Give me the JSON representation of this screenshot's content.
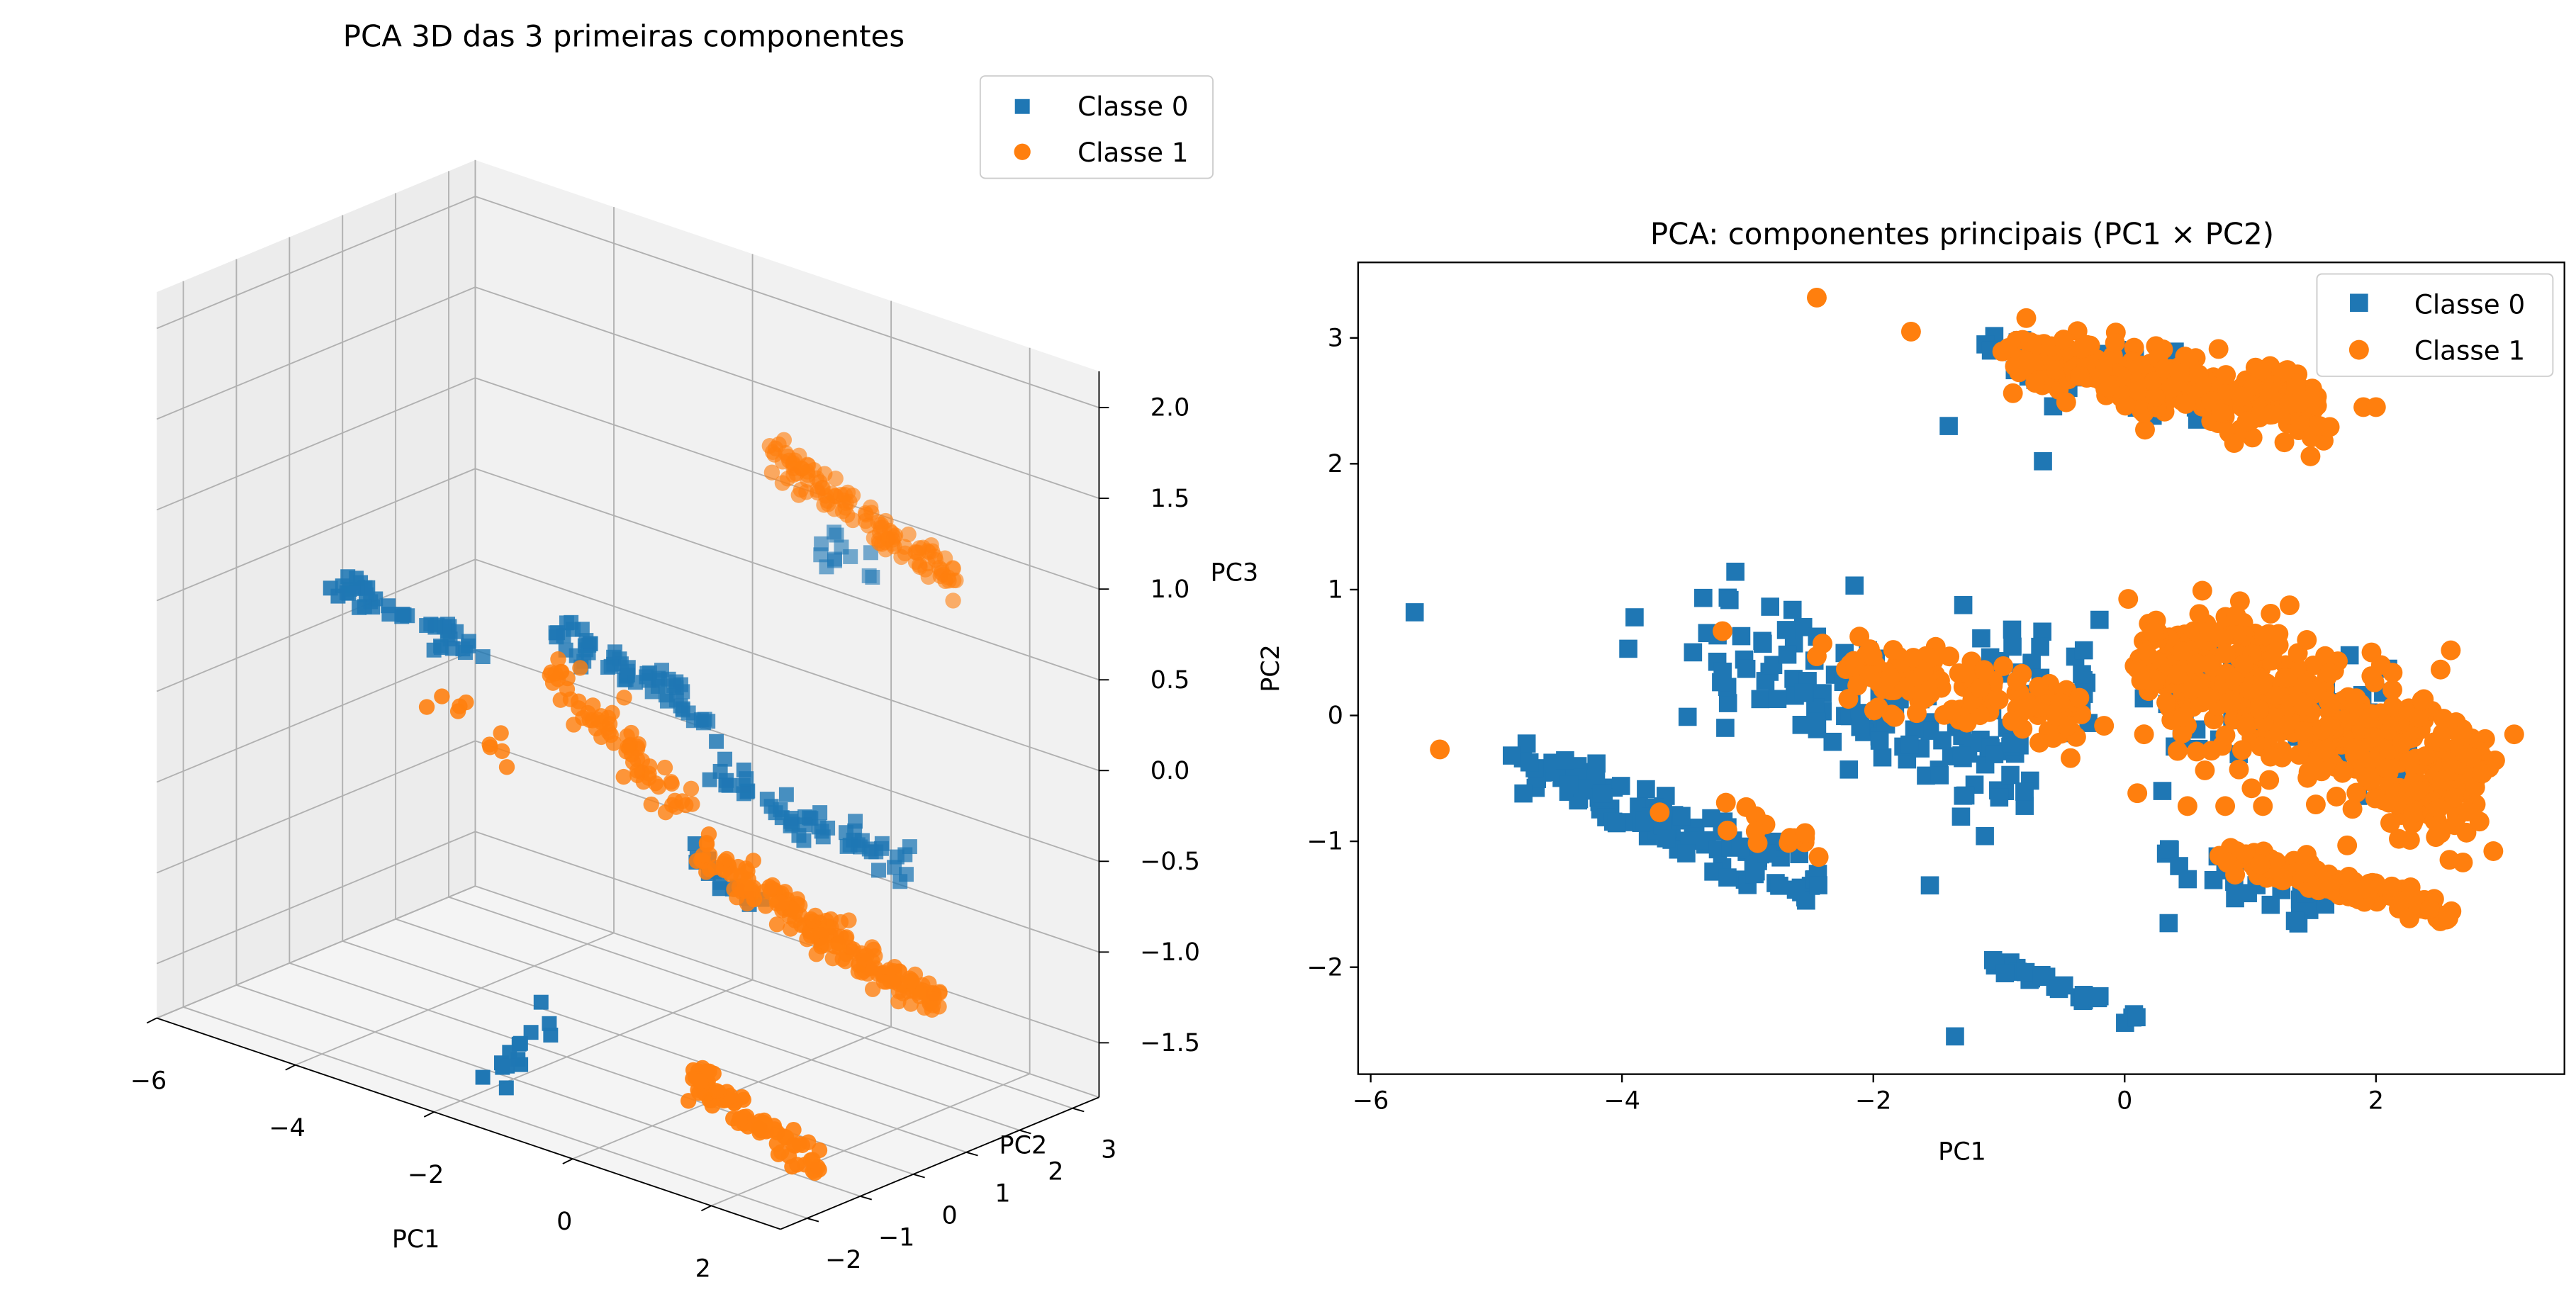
{
  "chart_data": [
    {
      "type": "scatter",
      "subtype": "3d",
      "title": "PCA 3D das 3 primeiras componentes",
      "xlabel": "PC1",
      "ylabel": "PC2",
      "zlabel": "PC3",
      "xlim": [
        -6,
        3
      ],
      "ylim": [
        -2.5,
        3.5
      ],
      "zlim": [
        -1.8,
        2.2
      ],
      "xticks": [
        "−6",
        "−4",
        "−2",
        "0",
        "2"
      ],
      "yticks": [
        "−2",
        "−1",
        "0",
        "1",
        "2",
        "3"
      ],
      "zticks": [
        "−1.5",
        "−1.0",
        "−0.5",
        "0.0",
        "0.5",
        "1.0",
        "1.5",
        "2.0"
      ],
      "grid": true,
      "legend": "top-right",
      "series": [
        {
          "name": "Classe 0",
          "color": "#1f77b4",
          "marker": "square",
          "clusters": [
            {
              "x": [
                -4.8,
                -3.2
              ],
              "y": [
                -1.0,
                -0.1
              ],
              "z": [
                0.6,
                0.3
              ],
              "n": 45
            },
            {
              "x": [
                -2.0,
                -0.6
              ],
              "y": [
                -0.2,
                0.7
              ],
              "z": [
                0.6,
                0.2
              ],
              "n": 60
            },
            {
              "x": [
                0.4,
                2.4
              ],
              "y": [
                -0.4,
                0.8
              ],
              "z": [
                0.1,
                -0.3
              ],
              "n": 55
            },
            {
              "x": [
                -0.3,
                0.3
              ],
              "y": [
                2.5,
                2.9
              ],
              "z": [
                1.0,
                0.8
              ],
              "n": 12
            },
            {
              "x": [
                -1.4,
                -0.6
              ],
              "y": [
                -2.5,
                -2.1
              ],
              "z": [
                -1.6,
                -1.2
              ],
              "n": 14
            },
            {
              "x": [
                1.0,
                1.6
              ],
              "y": [
                -1.5,
                -1.1
              ],
              "z": [
                -0.1,
                -0.4
              ],
              "n": 14
            }
          ]
        },
        {
          "name": "Classe 1",
          "color": "#ff7f0e",
          "marker": "circle",
          "clusters": [
            {
              "x": [
                -3.2,
                -2.4
              ],
              "y": [
                -1.0,
                -0.6
              ],
              "z": [
                0.2,
                -0.1
              ],
              "n": 10
            },
            {
              "x": [
                -2.2,
                -0.6
              ],
              "y": [
                0.0,
                0.4
              ],
              "z": [
                0.3,
                -0.3
              ],
              "n": 70
            },
            {
              "x": [
                0.4,
                2.8
              ],
              "y": [
                -0.6,
                0.8
              ],
              "z": [
                -0.3,
                -1.0
              ],
              "n": 180
            },
            {
              "x": [
                -0.9,
                1.4
              ],
              "y": [
                2.4,
                2.9
              ],
              "z": [
                1.4,
                0.9
              ],
              "n": 120
            },
            {
              "x": [
                1.0,
                2.5
              ],
              "y": [
                -1.6,
                -1.1
              ],
              "z": [
                -1.3,
                -1.7
              ],
              "n": 90
            }
          ]
        }
      ]
    },
    {
      "type": "scatter",
      "title": "PCA: componentes principais (PC1 × PC2)",
      "xlabel": "PC1",
      "ylabel": "PC2",
      "xlim": [
        -6.1,
        3.5
      ],
      "ylim": [
        -2.85,
        3.6
      ],
      "xticks": [
        "−6",
        "−4",
        "−2",
        "0",
        "2"
      ],
      "yticks": [
        "−2",
        "−1",
        "0",
        "1",
        "2",
        "3"
      ],
      "legend": "top-right",
      "series": [
        {
          "name": "Classe 0",
          "color": "#1f77b4",
          "marker": "square",
          "clusters": [
            {
              "x": [
                -4.9,
                -2.4
              ],
              "y": [
                -0.3,
                -1.4
              ],
              "spread": 0.12,
              "n": 110
            },
            {
              "x": [
                -3.3,
                -0.8
              ],
              "y": [
                0.6,
                -0.5
              ],
              "spread": 0.25,
              "n": 120
            },
            {
              "x": [
                -1.1,
                -0.2
              ],
              "y": [
                0.7,
                0.1
              ],
              "spread": 0.18,
              "n": 25
            },
            {
              "x": [
                0.2,
                2.2
              ],
              "y": [
                0.3,
                -0.3
              ],
              "spread": 0.2,
              "n": 90
            },
            {
              "x": [
                -1.1,
                0.9
              ],
              "y": [
                2.9,
                2.5
              ],
              "spread": 0.12,
              "n": 60
            },
            {
              "x": [
                -1.0,
                0.1
              ],
              "y": [
                -2.0,
                -2.4
              ],
              "spread": 0.05,
              "n": 25
            },
            {
              "x": [
                0.3,
                1.5
              ],
              "y": [
                -1.1,
                -1.5
              ],
              "spread": 0.1,
              "n": 30
            }
          ],
          "points": [
            {
              "x": -5.65,
              "y": 0.82
            },
            {
              "x": -3.9,
              "y": 0.78
            },
            {
              "x": -3.95,
              "y": 0.53
            },
            {
              "x": -1.4,
              "y": 2.3
            },
            {
              "x": -0.65,
              "y": 2.02
            },
            {
              "x": -0.2,
              "y": 0.76
            },
            {
              "x": -1.35,
              "y": -2.55
            },
            {
              "x": -2.45,
              "y": -0.05
            },
            {
              "x": -1.95,
              "y": -0.2
            },
            {
              "x": -1.55,
              "y": -1.35
            },
            {
              "x": 0.35,
              "y": -1.65
            },
            {
              "x": 0.3,
              "y": -0.6
            }
          ]
        },
        {
          "name": "Classe 1",
          "color": "#ff7f0e",
          "marker": "circle",
          "clusters": [
            {
              "x": [
                -0.9,
                1.5
              ],
              "y": [
                2.85,
                2.45
              ],
              "spread": 0.14,
              "n": 260
            },
            {
              "x": [
                0.2,
                2.8
              ],
              "y": [
                0.45,
                -0.55
              ],
              "spread": 0.28,
              "n": 480
            },
            {
              "x": [
                -2.2,
                -0.4
              ],
              "y": [
                0.35,
                0.0
              ],
              "spread": 0.14,
              "n": 140
            },
            {
              "x": [
                -3.2,
                -2.4
              ],
              "y": [
                -0.7,
                -1.1
              ],
              "spread": 0.07,
              "n": 14
            },
            {
              "x": [
                0.8,
                2.6
              ],
              "y": [
                -1.1,
                -1.55
              ],
              "spread": 0.06,
              "n": 150
            }
          ],
          "points": [
            {
              "x": -2.45,
              "y": 3.32
            },
            {
              "x": -1.7,
              "y": 3.05
            },
            {
              "x": -5.45,
              "y": -0.27
            },
            {
              "x": -3.7,
              "y": -0.77
            },
            {
              "x": -3.2,
              "y": 0.67
            },
            {
              "x": -2.45,
              "y": 0.47
            },
            {
              "x": 3.1,
              "y": -0.15
            },
            {
              "x": 1.9,
              "y": 2.45
            },
            {
              "x": 2.0,
              "y": 2.45
            },
            {
              "x": 1.55,
              "y": 2.3
            },
            {
              "x": 0.5,
              "y": -0.72
            },
            {
              "x": 0.8,
              "y": -0.72
            },
            {
              "x": 1.1,
              "y": -0.72
            },
            {
              "x": 1.45,
              "y": 0.6
            }
          ]
        }
      ]
    }
  ]
}
